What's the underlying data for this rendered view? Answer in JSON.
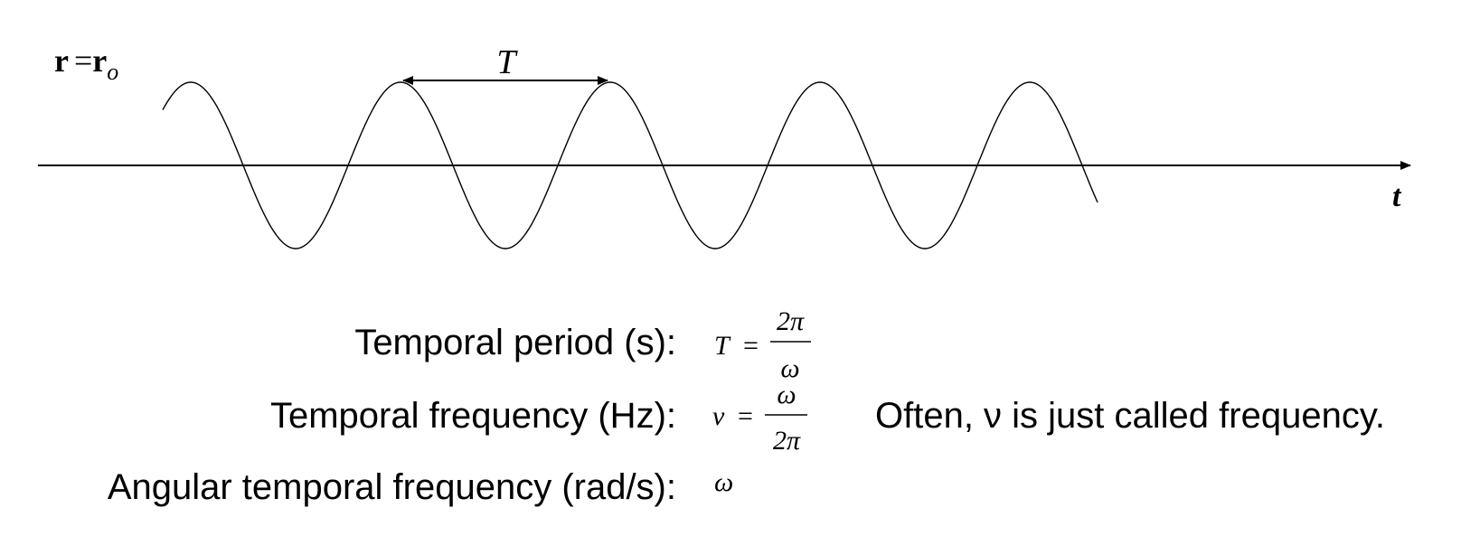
{
  "diagram": {
    "position_label": {
      "bold": "r",
      "eq": "=",
      "bold2": "r",
      "sub": "o"
    },
    "time_axis_label": "t",
    "period_label": "T",
    "wave": {
      "cycles_shown": 5
    }
  },
  "definitions": [
    {
      "label": "Temporal period (s):",
      "lhs": "T",
      "eq": "=",
      "num": "2π",
      "den": "ω"
    },
    {
      "label": "Temporal frequency (Hz):",
      "lhs": "ν",
      "eq": "=",
      "num": "ω",
      "den": "2π"
    },
    {
      "label": "Angular temporal frequency (rad/s):",
      "symbol": "ω"
    }
  ],
  "note": "Often, ν is just called frequency."
}
